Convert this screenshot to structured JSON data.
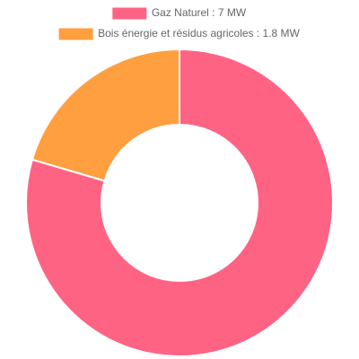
{
  "chart_data": {
    "type": "doughnut",
    "categories": [
      "Gaz Naturel : 7 MW",
      "Bois énergie et résidus agricoles : 1.8 MW"
    ],
    "values": [
      7,
      1.8
    ],
    "colors": [
      "#ff6384",
      "#ff9f40"
    ],
    "legend": "top"
  }
}
